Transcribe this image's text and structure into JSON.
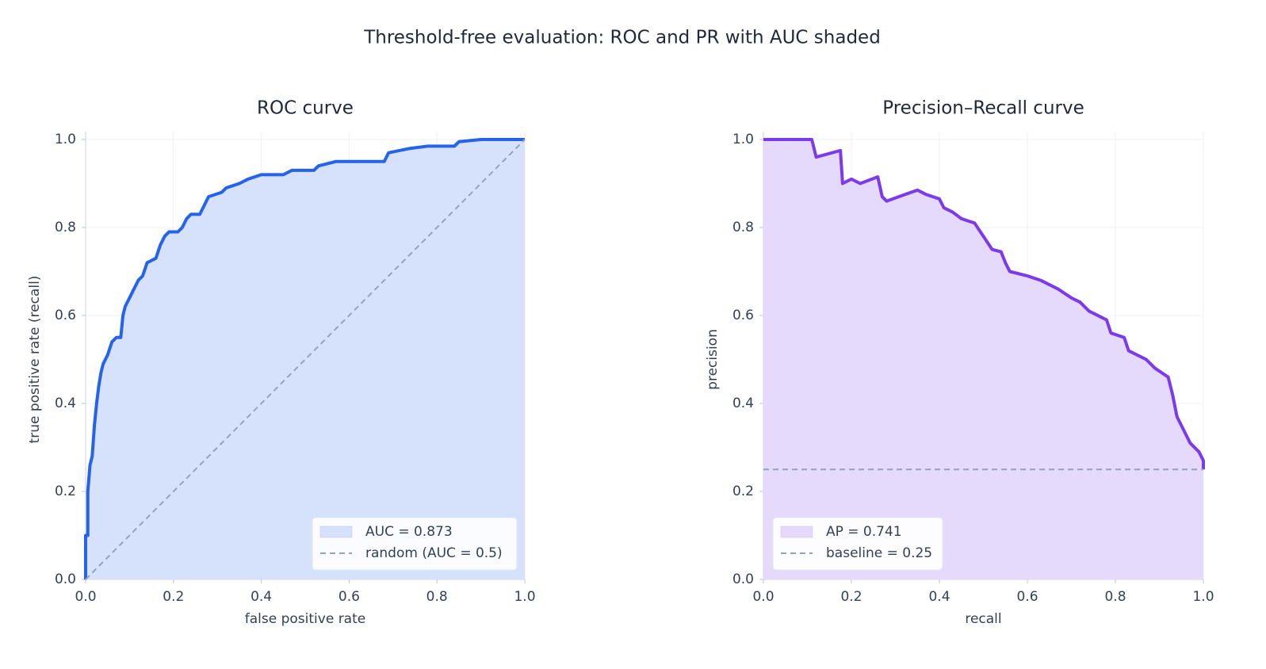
{
  "title": "Threshold-free evaluation: ROC and PR with AUC shaded",
  "chart_data": [
    {
      "type": "line",
      "title": "ROC curve",
      "xlabel": "false positive rate",
      "ylabel": "true positive rate (recall)",
      "xlim": [
        0,
        1
      ],
      "ylim": [
        0,
        1
      ],
      "xticks": [
        {
          "value": 0,
          "label": "0.0"
        },
        0.2,
        0.4,
        0.6,
        0.8,
        {
          "value": 1,
          "label": "1.0"
        }
      ],
      "yticks": [
        {
          "value": 0,
          "label": "0.0"
        },
        0.2,
        0.4,
        0.6,
        0.8,
        {
          "value": 1,
          "label": "1.0"
        }
      ],
      "grid": true,
      "legend": "lower right",
      "series": [
        {
          "name": "AUC = 0.873",
          "color": "#2563eb",
          "fill": "#d6e2fb",
          "style": "solid",
          "x": [
            0,
            0,
            0.005,
            0.005,
            0.01,
            0.015,
            0.02,
            0.025,
            0.03,
            0.035,
            0.04,
            0.05,
            0.06,
            0.07,
            0.08,
            0.085,
            0.09,
            0.1,
            0.11,
            0.12,
            0.13,
            0.14,
            0.16,
            0.17,
            0.18,
            0.19,
            0.21,
            0.22,
            0.23,
            0.24,
            0.26,
            0.27,
            0.28,
            0.31,
            0.32,
            0.35,
            0.37,
            0.4,
            0.45,
            0.47,
            0.52,
            0.53,
            0.57,
            0.68,
            0.69,
            0.74,
            0.78,
            0.84,
            0.85,
            0.9,
            1
          ],
          "values": [
            0,
            0.1,
            0.1,
            0.2,
            0.26,
            0.28,
            0.35,
            0.4,
            0.44,
            0.47,
            0.49,
            0.51,
            0.54,
            0.55,
            0.55,
            0.6,
            0.62,
            0.64,
            0.66,
            0.68,
            0.69,
            0.72,
            0.73,
            0.76,
            0.78,
            0.79,
            0.79,
            0.8,
            0.82,
            0.83,
            0.83,
            0.85,
            0.87,
            0.88,
            0.89,
            0.9,
            0.91,
            0.92,
            0.92,
            0.93,
            0.93,
            0.94,
            0.95,
            0.95,
            0.97,
            0.98,
            0.985,
            0.985,
            0.995,
            1,
            1
          ]
        },
        {
          "name": "random (AUC = 0.5)",
          "color": "#94a3b8",
          "style": "dashed",
          "x": [
            0,
            1
          ],
          "values": [
            0,
            1
          ]
        }
      ]
    },
    {
      "type": "line",
      "title": "Precision–Recall curve",
      "xlabel": "recall",
      "ylabel": "precision",
      "xlim": [
        0,
        1
      ],
      "ylim": [
        0,
        1
      ],
      "xticks": [
        {
          "value": 0,
          "label": "0.0"
        },
        0.2,
        0.4,
        0.6,
        0.8,
        {
          "value": 1,
          "label": "1.0"
        }
      ],
      "yticks": [
        {
          "value": 0,
          "label": "0.0"
        },
        0.2,
        0.4,
        0.6,
        0.8,
        {
          "value": 1,
          "label": "1.0"
        }
      ],
      "grid": true,
      "legend": "lower left",
      "series": [
        {
          "name": "AP = 0.741",
          "color": "#7c3aed",
          "fill": "#e5dafb",
          "style": "solid",
          "x": [
            0,
            0.11,
            0.12,
            0.175,
            0.18,
            0.2,
            0.22,
            0.26,
            0.27,
            0.28,
            0.35,
            0.37,
            0.4,
            0.41,
            0.43,
            0.45,
            0.48,
            0.5,
            0.52,
            0.54,
            0.55,
            0.56,
            0.6,
            0.63,
            0.67,
            0.7,
            0.72,
            0.74,
            0.78,
            0.79,
            0.82,
            0.83,
            0.87,
            0.89,
            0.92,
            0.93,
            0.94,
            0.96,
            0.97,
            0.99,
            1,
            1
          ],
          "values": [
            1,
            1,
            0.96,
            0.975,
            0.9,
            0.91,
            0.9,
            0.915,
            0.87,
            0.86,
            0.885,
            0.875,
            0.865,
            0.845,
            0.835,
            0.82,
            0.81,
            0.78,
            0.75,
            0.745,
            0.72,
            0.7,
            0.69,
            0.68,
            0.66,
            0.64,
            0.63,
            0.61,
            0.59,
            0.56,
            0.55,
            0.52,
            0.5,
            0.48,
            0.46,
            0.42,
            0.37,
            0.33,
            0.31,
            0.29,
            0.27,
            0.25
          ]
        },
        {
          "name": "baseline = 0.25",
          "color": "#94a3b8",
          "style": "dashed",
          "x": [
            0,
            1
          ],
          "values": [
            0.25,
            0.25
          ]
        }
      ]
    }
  ]
}
